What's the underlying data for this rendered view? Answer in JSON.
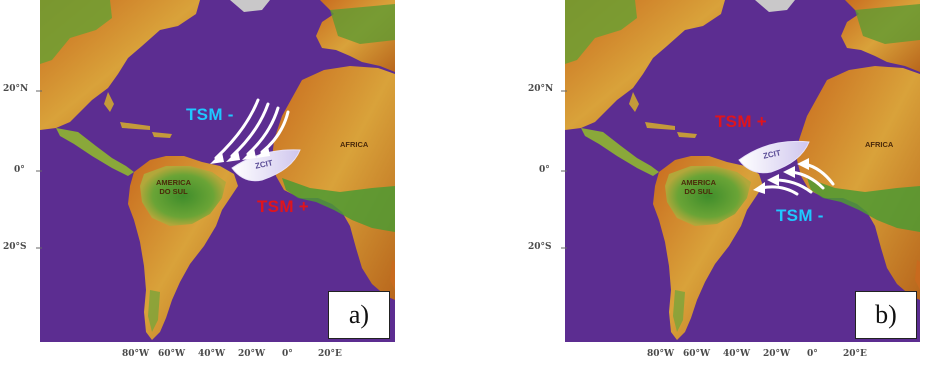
{
  "colors": {
    "ocean": "#5c2d91",
    "land_green": "#4d9a33",
    "land_yellow": "#c8b43a",
    "land_orange": "#c86a1e",
    "tsm_minus": "#1fc8ff",
    "tsm_plus": "#e0141c",
    "arrow": "#ffffff"
  },
  "axes": {
    "lat_ticks": [
      "20°N",
      "0°",
      "20°S"
    ],
    "lon_ticks": [
      "80°W",
      "60°W",
      "40°W",
      "20°W",
      "0°",
      "20°E"
    ]
  },
  "panels": [
    {
      "label": "a)",
      "tsm_minus": "TSM -",
      "tsm_plus": "TSM +",
      "region_africa": "AFRICA",
      "region_south_america": "AMERICA\nDO SUL",
      "itcz": "ZCIT",
      "arrow_direction": "from north toward southwest"
    },
    {
      "label": "b)",
      "tsm_minus": "TSM -",
      "tsm_plus": "TSM +",
      "region_africa": "AFRICA",
      "region_south_america": "AMERICA\nDO SUL",
      "itcz": "ZCIT",
      "arrow_direction": "from south toward northwest"
    }
  ]
}
